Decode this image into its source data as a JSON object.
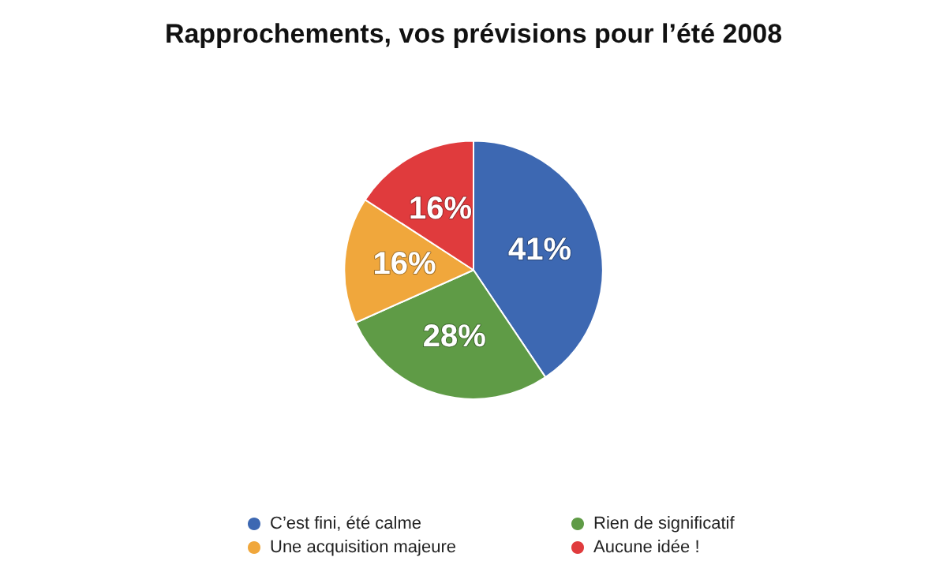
{
  "chart_data": {
    "type": "pie",
    "title": "Rapprochements, vos prévisions pour l’été 2008",
    "categories": [
      "C’est fini, été calme",
      "Rien de significatif",
      "Une acquisition majeure",
      "Aucune idée !"
    ],
    "values": [
      41,
      28,
      16,
      16
    ],
    "value_labels": [
      "41%",
      "28%",
      "16%",
      "16%"
    ],
    "colors": [
      "#3d68b2",
      "#5f9b46",
      "#f0a73c",
      "#e03b3d"
    ],
    "legend": "bottom"
  }
}
